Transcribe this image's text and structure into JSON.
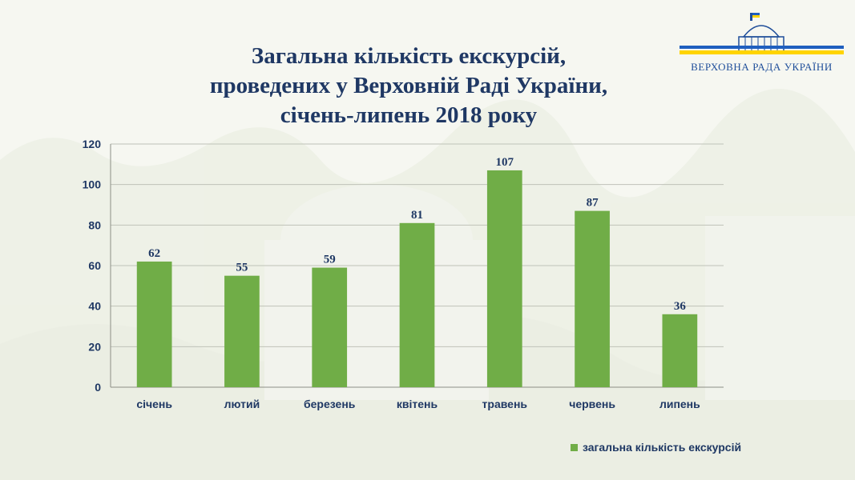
{
  "title_lines": [
    "Загальна кількість екскурсій,",
    "проведених у Верховній Раді України,",
    "січень-липень 2018 року"
  ],
  "logo": {
    "text": "ВЕРХОВНА  РАДА  УКРАЇНИ",
    "flag_colors": [
      "#1f5fbf",
      "#ffd400"
    ],
    "accent": "#1f4e9a"
  },
  "chart_data": {
    "type": "bar",
    "categories": [
      "січень",
      "лютий",
      "березень",
      "квітень",
      "травень",
      "червень",
      "липень"
    ],
    "series": [
      {
        "name": "загальна кількість екскурсій",
        "values": [
          62,
          55,
          59,
          81,
          107,
          87,
          36
        ],
        "color": "#70ad47"
      }
    ],
    "yticks": [
      "0",
      "20",
      "40",
      "60",
      "80",
      "100",
      "120"
    ],
    "ylim": [
      0,
      120
    ],
    "grid": true,
    "data_labels": true,
    "legend_position": "bottom-right"
  }
}
